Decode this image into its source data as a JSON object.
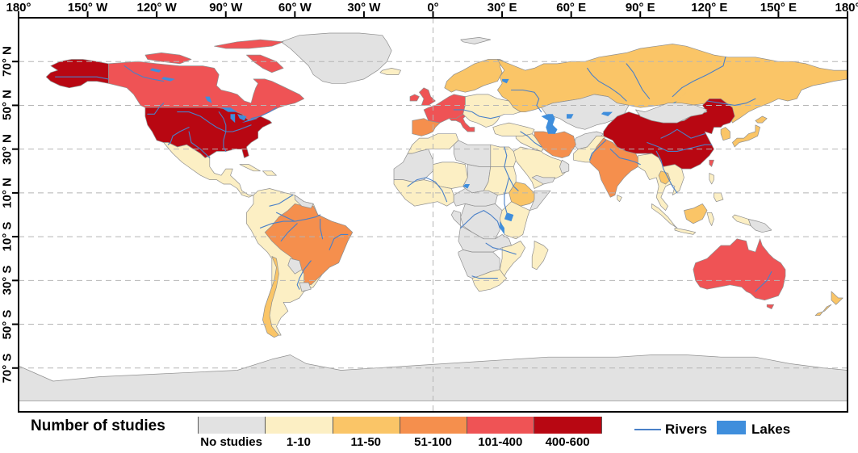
{
  "figure": {
    "type": "choropleth-world-map",
    "projection": "equirectangular"
  },
  "axes": {
    "top": [
      {
        "label": "180°",
        "lon": -180
      },
      {
        "label": "150° W",
        "lon": -150
      },
      {
        "label": "120° W",
        "lon": -120
      },
      {
        "label": "90° W",
        "lon": -90
      },
      {
        "label": "60° W",
        "lon": -60
      },
      {
        "label": "30° W",
        "lon": -30
      },
      {
        "label": "0°",
        "lon": 0
      },
      {
        "label": "30° E",
        "lon": 30
      },
      {
        "label": "60° E",
        "lon": 60
      },
      {
        "label": "90° E",
        "lon": 90
      },
      {
        "label": "120° E",
        "lon": 120
      },
      {
        "label": "150° E",
        "lon": 150
      },
      {
        "label": "180°",
        "lon": 180
      }
    ],
    "left": [
      {
        "label": "70° N",
        "lat": 70
      },
      {
        "label": "50° N",
        "lat": 50
      },
      {
        "label": "30° N",
        "lat": 30
      },
      {
        "label": "10° N",
        "lat": 10
      },
      {
        "label": "10° S",
        "lat": -10
      },
      {
        "label": "30° S",
        "lat": -30
      },
      {
        "label": "50° S",
        "lat": -50
      },
      {
        "label": "70° S",
        "lat": -70
      }
    ]
  },
  "legend": {
    "title": "Number of studies",
    "classes": [
      {
        "id": "no-studies",
        "label": "No studies",
        "color": "#E2E2E2"
      },
      {
        "id": "1-10",
        "label": "1-10",
        "color": "#FCEFC4"
      },
      {
        "id": "11-50",
        "label": "11-50",
        "color": "#FAC567"
      },
      {
        "id": "51-100",
        "label": "51-100",
        "color": "#F58F4D"
      },
      {
        "id": "101-400",
        "label": "101-400",
        "color": "#EF5355"
      },
      {
        "id": "400-600",
        "label": "400-600",
        "color": "#B80712"
      }
    ],
    "rivers_label": "Rivers",
    "lakes_label": "Lakes",
    "river_color": "#4a80c8",
    "water_color": "#3f8edc"
  },
  "map": {
    "border_color": "#000000",
    "country_outline_color": "#8f8f8f",
    "graticule_color": "#b5b5b5",
    "ocean_color": "#ffffff",
    "regions": {
      "greenland": "no-studies",
      "canada": "101-400",
      "arctic-islands-west": "101-400",
      "baffin-island": "101-400",
      "ellesmere-island": "101-400",
      "alaska": "400-600",
      "united-states": "400-600",
      "mexico-central-america": "1-10",
      "cuba": "1-10",
      "hispaniola": "1-10",
      "south-america": "1-10",
      "brazil": "51-100",
      "chile": "11-50",
      "guyana-suriname": "no-studies",
      "paraguay": "no-studies",
      "uruguay": "no-studies",
      "antarctica": "no-studies",
      "iceland": "1-10",
      "svalbard": "no-studies",
      "united-kingdom": "101-400",
      "ireland": "101-400",
      "france-germany": "101-400",
      "italy": "101-400",
      "iberia": "51-100",
      "scandinavia": "11-50",
      "eastern-europe": "1-10",
      "turkey": "1-10",
      "russia": "11-50",
      "central-asia": "no-studies",
      "afghanistan": "no-studies",
      "pakistan": "1-10",
      "iran": "51-100",
      "iraq-syria": "1-10",
      "arabia": "1-10",
      "yemen": "no-studies",
      "oman": "no-studies",
      "maghreb": "1-10",
      "western-sahara-mali": "no-studies",
      "libya": "no-studies",
      "egypt": "1-10",
      "niger": "1-10",
      "chad": "no-studies",
      "sudan": "1-10",
      "ethiopia": "11-50",
      "somalia": "no-studies",
      "west-africa": "1-10",
      "central-africa": "no-studies",
      "congo-gabon": "no-studies",
      "drc": "no-studies",
      "east-africa": "1-10",
      "angola-zambia": "no-studies",
      "mozambique-zimbabwe": "1-10",
      "namibia-botswana": "no-studies",
      "south-africa": "1-10",
      "madagascar": "1-10",
      "india": "51-100",
      "sri-lanka": "1-10",
      "china": "400-600",
      "mongolia": "no-studies",
      "korea": "11-50",
      "japan": "11-50",
      "taiwan": "101-400",
      "myanmar-indochina": "1-10",
      "thailand": "11-50",
      "sumatra": "1-10",
      "borneo": "11-50",
      "java": "1-10",
      "sulawesi": "1-10",
      "philippines": "1-10",
      "new-guinea-west": "1-10",
      "papua-new-guinea": "no-studies",
      "australia": "101-400",
      "tasmania": "101-400",
      "new-zealand": "11-50"
    }
  }
}
